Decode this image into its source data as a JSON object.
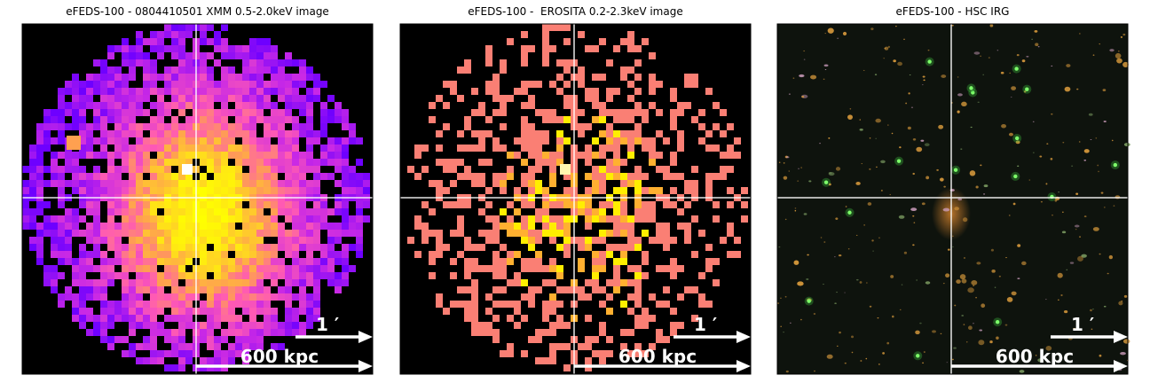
{
  "panels": [
    {
      "title": "eFEDS-100 - 0804410501 XMM 0.5-2.0keV image",
      "scale_angle": "1 ′",
      "scale_distance": "600 kpc"
    },
    {
      "title": "eFEDS-100 -  EROSITA 0.2-2.3keV image",
      "scale_angle": "1 ′",
      "scale_distance": "600 kpc"
    },
    {
      "title": "eFEDS-100 - HSC IRG",
      "scale_angle": "1 ′",
      "scale_distance": "600 kpc"
    }
  ]
}
